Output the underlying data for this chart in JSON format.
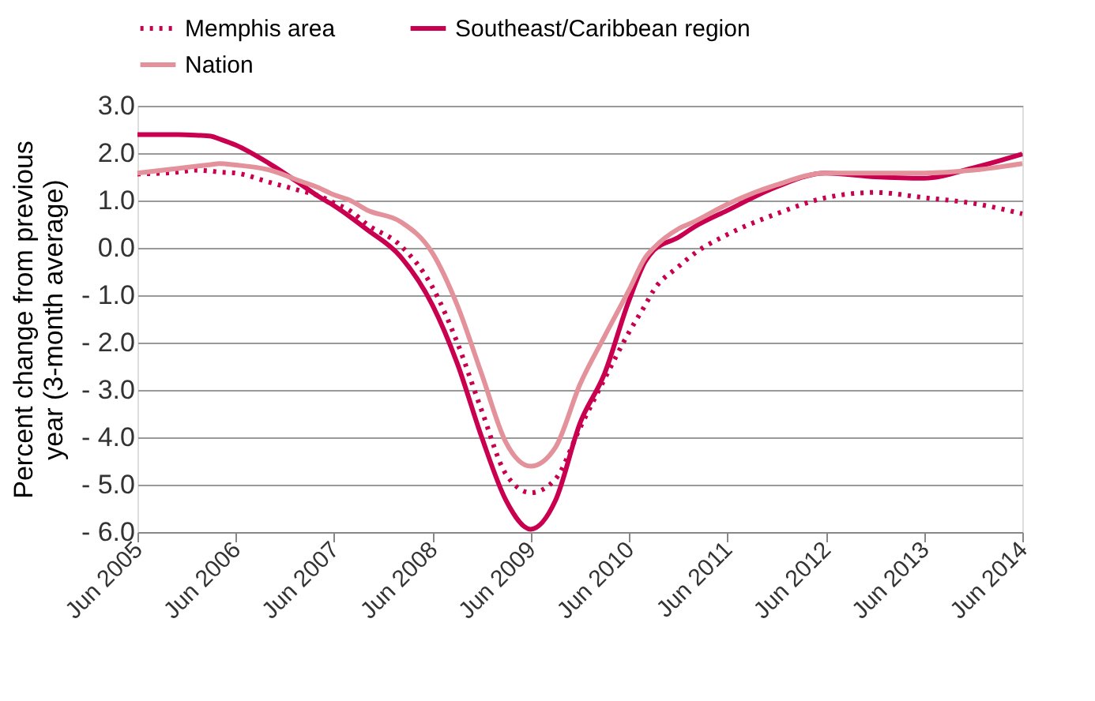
{
  "chart_data": {
    "type": "line",
    "ylabel": "Percent change from previous year (3-month average)",
    "x": [
      "2005-06",
      "2005-11",
      "2006-01",
      "2006-03",
      "2006-04",
      "2006-06",
      "2006-10",
      "2007-02",
      "2007-04",
      "2007-06",
      "2007-08",
      "2007-10",
      "2008-02",
      "2008-06",
      "2008-09",
      "2008-12",
      "2009-03",
      "2009-06",
      "2009-09",
      "2009-12",
      "2010-03",
      "2010-06",
      "2010-08",
      "2010-09",
      "2010-12",
      "2011-02",
      "2011-06",
      "2011-12",
      "2012-06",
      "2012-12",
      "2013-06",
      "2013-12",
      "2014-06"
    ],
    "series": [
      {
        "name": "Memphis area",
        "color": "#c8004f",
        "line_style": "dotted",
        "values": [
          1.56,
          1.6,
          1.64,
          1.62,
          1.6,
          1.58,
          1.39,
          1.2,
          1.11,
          0.95,
          0.78,
          0.5,
          0.06,
          -0.83,
          -2.0,
          -3.44,
          -4.78,
          -5.17,
          -4.88,
          -3.8,
          -2.78,
          -1.78,
          -1.2,
          -0.89,
          -0.4,
          -0.11,
          0.28,
          0.72,
          1.06,
          1.17,
          1.06,
          0.94,
          0.72
        ]
      },
      {
        "name": "Southeast/Caribbean region",
        "color": "#c8004f",
        "line_style": "solid",
        "values": [
          2.39,
          2.39,
          2.38,
          2.36,
          2.3,
          2.17,
          1.79,
          1.33,
          1.1,
          0.89,
          0.65,
          0.39,
          -0.17,
          -1.21,
          -2.44,
          -4.0,
          -5.33,
          -5.94,
          -5.33,
          -3.7,
          -2.67,
          -1.11,
          -0.28,
          -0.05,
          0.22,
          0.45,
          0.79,
          1.29,
          1.58,
          1.5,
          1.47,
          1.69,
          1.98
        ]
      },
      {
        "name": "Nation",
        "color": "#e3919a",
        "line_style": "solid",
        "values": [
          1.58,
          1.68,
          1.72,
          1.76,
          1.78,
          1.75,
          1.65,
          1.4,
          1.28,
          1.12,
          1.0,
          0.8,
          0.56,
          -0.11,
          -1.21,
          -2.67,
          -4.11,
          -4.61,
          -4.21,
          -2.88,
          -1.88,
          -0.89,
          -0.2,
          0.0,
          0.4,
          0.56,
          0.92,
          1.33,
          1.58,
          1.58,
          1.58,
          1.64,
          1.78
        ]
      }
    ],
    "xlim": [
      "2005-06",
      "2014-06"
    ],
    "xticks": [
      {
        "value": "2005-06",
        "label": "Jun 2005"
      },
      {
        "value": "2006-06",
        "label": "Jun 2006"
      },
      {
        "value": "2007-06",
        "label": "Jun 2007"
      },
      {
        "value": "2008-06",
        "label": "Jun 2008"
      },
      {
        "value": "2009-06",
        "label": "Jun 2009"
      },
      {
        "value": "2010-06",
        "label": "Jun 2010"
      },
      {
        "value": "2011-06",
        "label": "Jun 2011"
      },
      {
        "value": "2012-06",
        "label": "Jun 2012"
      },
      {
        "value": "2013-06",
        "label": "Jun 2013"
      },
      {
        "value": "2014-06",
        "label": "Jun 2014"
      }
    ],
    "ylim": [
      -6,
      3
    ],
    "yticks": [
      {
        "value": 3,
        "label": "3.0"
      },
      {
        "value": 2,
        "label": "2.0"
      },
      {
        "value": 1,
        "label": "1.0"
      },
      {
        "value": 0,
        "label": "0.0"
      },
      {
        "value": -1,
        "label": "- 1.0"
      },
      {
        "value": -2,
        "label": "- 2.0"
      },
      {
        "value": -3,
        "label": "- 3.0"
      },
      {
        "value": -4,
        "label": "- 4.0"
      },
      {
        "value": -5,
        "label": "- 5.0"
      },
      {
        "value": -6,
        "label": "- 6.0"
      }
    ],
    "grid": "y",
    "legend": "top"
  }
}
